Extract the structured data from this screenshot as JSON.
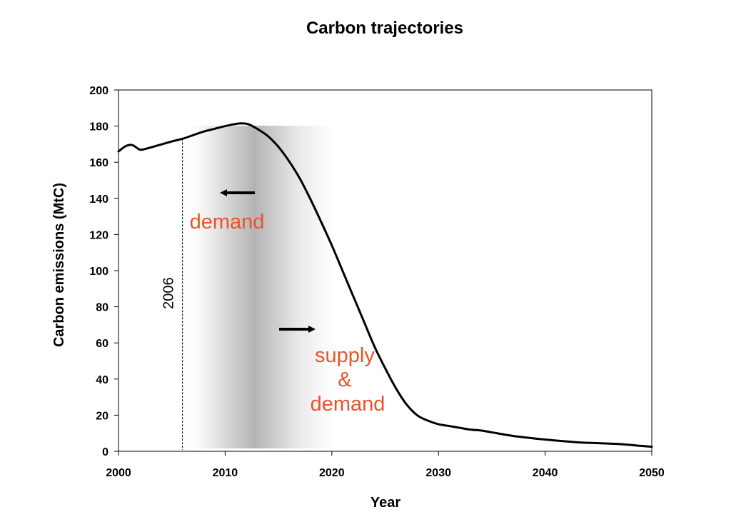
{
  "chart_data": {
    "type": "line",
    "title": "Carbon trajectories",
    "xlabel": "Year",
    "ylabel": "Carbon emissions (MtC)",
    "xlim": [
      2000,
      2050
    ],
    "ylim": [
      0,
      200
    ],
    "x_ticks": [
      "2000",
      "2010",
      "2020",
      "2030",
      "2040",
      "2050"
    ],
    "y_ticks": [
      "0",
      "20",
      "40",
      "60",
      "80",
      "100",
      "120",
      "140",
      "160",
      "180",
      "200"
    ],
    "grid": false,
    "series": [
      {
        "color": "#000000",
        "x": [
          2000,
          2000.7,
          2001.3,
          2002,
          2002.6,
          2003.5,
          2005,
          2006,
          2007,
          2008,
          2009,
          2010,
          2010.8,
          2011.5,
          2012.2,
          2013,
          2014,
          2015,
          2016,
          2017,
          2018,
          2019,
          2020,
          2021,
          2022,
          2023,
          2024,
          2025,
          2026,
          2027,
          2028,
          2029,
          2030,
          2031,
          2032,
          2033,
          2034,
          2035,
          2037,
          2040,
          2043,
          2045,
          2047,
          2049,
          2050
        ],
        "y": [
          166,
          169,
          169.5,
          167,
          167.5,
          169,
          171.5,
          173,
          175,
          177,
          178.5,
          180,
          181,
          181.5,
          181,
          178.5,
          174.5,
          168.5,
          160.5,
          151,
          139.5,
          127,
          114,
          100,
          86,
          72,
          58,
          46,
          35,
          26,
          20,
          17,
          15,
          14,
          13,
          12,
          11.5,
          10.5,
          8.5,
          6.5,
          5,
          4.5,
          4,
          3,
          2.5
        ]
      }
    ],
    "annotations": [
      {
        "text": "2006",
        "x": 2006,
        "kind": "vertical-line"
      },
      {
        "text": "demand",
        "arrow": "left",
        "color": "#e8542c"
      },
      {
        "text": [
          "supply",
          "&",
          "demand"
        ],
        "arrow": "right",
        "color": "#e8542c"
      }
    ],
    "shaded_region": {
      "x": [
        2006,
        2020
      ]
    }
  }
}
